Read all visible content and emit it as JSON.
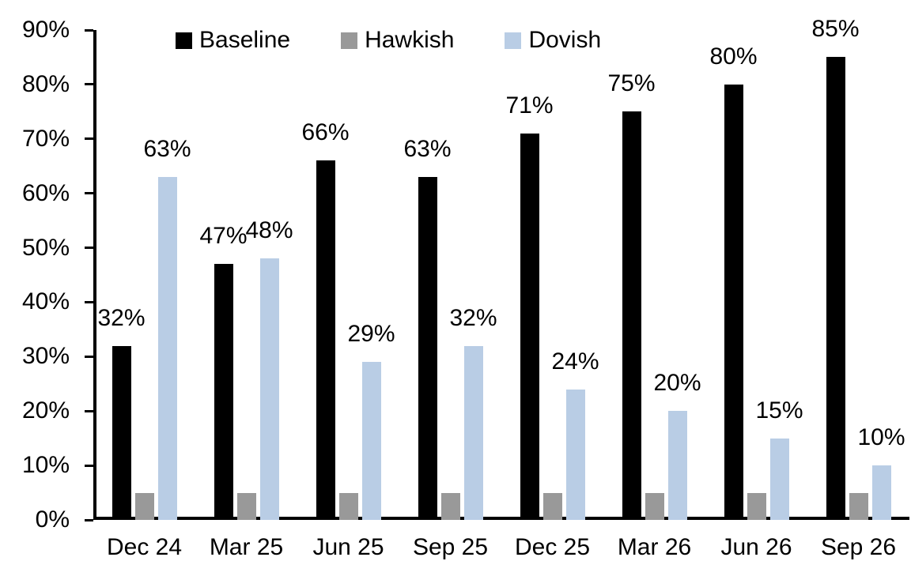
{
  "chart_data": {
    "type": "bar",
    "title": "",
    "xlabel": "",
    "ylabel": "",
    "categories": [
      "Dec 24",
      "Mar 25",
      "Jun 25",
      "Sep 25",
      "Dec 25",
      "Mar 26",
      "Jun 26",
      "Sep 26"
    ],
    "series": [
      {
        "name": "Baseline",
        "color": "#000000",
        "values": [
          32,
          47,
          66,
          63,
          71,
          75,
          80,
          85
        ],
        "labels": [
          "32%",
          "47%",
          "66%",
          "63%",
          "71%",
          "75%",
          "80%",
          "85%"
        ],
        "show_labels": true
      },
      {
        "name": "Hawkish",
        "color": "#999999",
        "values": [
          5,
          5,
          5,
          5,
          5,
          5,
          5,
          5
        ],
        "labels": [],
        "show_labels": false
      },
      {
        "name": "Dovish",
        "color": "#b9cde5",
        "values": [
          63,
          48,
          29,
          32,
          24,
          20,
          15,
          10
        ],
        "labels": [
          "63%",
          "48%",
          "29%",
          "32%",
          "24%",
          "20%",
          "15%",
          "10%"
        ],
        "show_labels": true
      }
    ],
    "ylim": [
      0,
      90
    ],
    "yticks": [
      "0%",
      "10%",
      "20%",
      "30%",
      "40%",
      "50%",
      "60%",
      "70%",
      "80%",
      "90%"
    ],
    "legend": {
      "position": "top",
      "entries": [
        "Baseline",
        "Hawkish",
        "Dovish"
      ]
    },
    "grid": false,
    "axis_color": "#000000",
    "text_color": "#000000",
    "background_color": "#ffffff"
  }
}
